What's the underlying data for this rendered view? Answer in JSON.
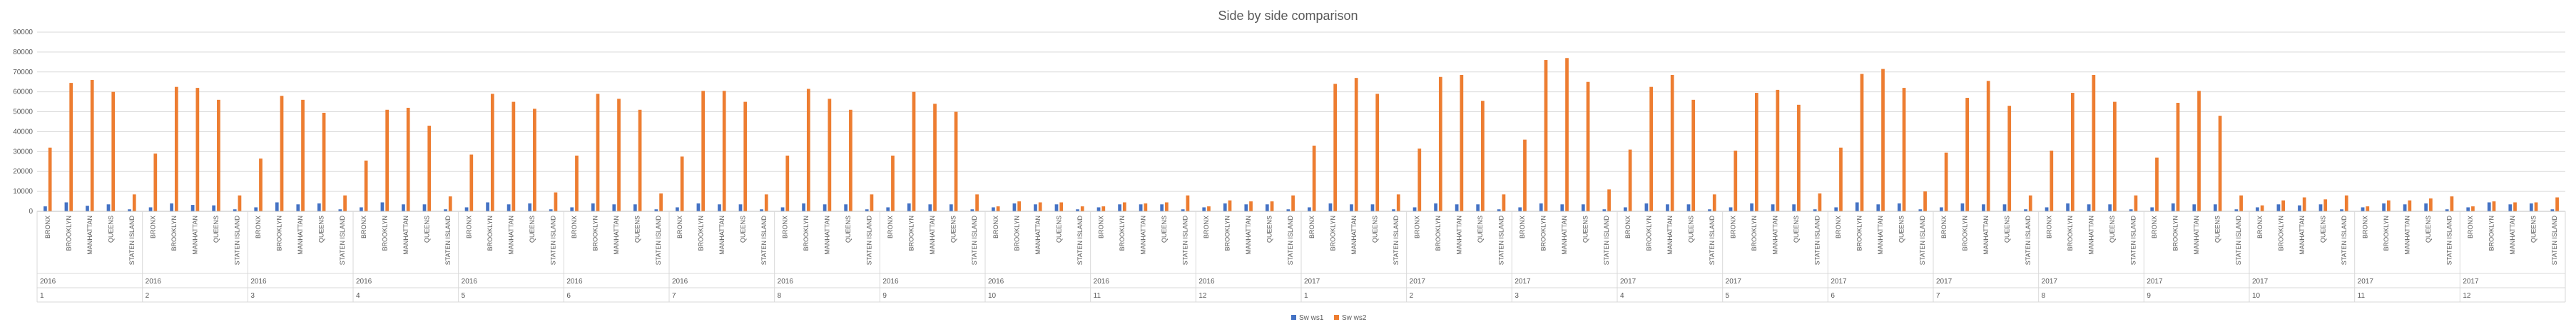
{
  "chart_data": {
    "type": "bar",
    "title": "Side by side comparison",
    "ylim": [
      0,
      90000
    ],
    "y_ticks": [
      0,
      10000,
      20000,
      30000,
      40000,
      50000,
      60000,
      70000,
      80000,
      90000
    ],
    "grid": true,
    "legend_position": "bottom-right",
    "boroughs": [
      "BRONX",
      "BROOKLYN",
      "MANHATTAN",
      "QUEENS",
      "STATEN ISLAND"
    ],
    "groups": [
      {
        "year": "2016",
        "month": "1"
      },
      {
        "year": "2016",
        "month": "2"
      },
      {
        "year": "2016",
        "month": "3"
      },
      {
        "year": "2016",
        "month": "4"
      },
      {
        "year": "2016",
        "month": "5"
      },
      {
        "year": "2016",
        "month": "6"
      },
      {
        "year": "2016",
        "month": "7"
      },
      {
        "year": "2016",
        "month": "8"
      },
      {
        "year": "2016",
        "month": "9"
      },
      {
        "year": "2016",
        "month": "10"
      },
      {
        "year": "2016",
        "month": "11"
      },
      {
        "year": "2016",
        "month": "12"
      },
      {
        "year": "2017",
        "month": "1"
      },
      {
        "year": "2017",
        "month": "2"
      },
      {
        "year": "2017",
        "month": "3"
      },
      {
        "year": "2017",
        "month": "4"
      },
      {
        "year": "2017",
        "month": "5"
      },
      {
        "year": "2017",
        "month": "6"
      },
      {
        "year": "2017",
        "month": "7"
      },
      {
        "year": "2017",
        "month": "8"
      },
      {
        "year": "2017",
        "month": "9"
      },
      {
        "year": "2017",
        "month": "10"
      },
      {
        "year": "2017",
        "month": "11"
      },
      {
        "year": "2017",
        "month": "12"
      }
    ],
    "series": [
      {
        "name": "Sw ws1",
        "color": "#4472C4",
        "values": [
          2500,
          4500,
          2800,
          3500,
          1000,
          2000,
          4000,
          3200,
          3000,
          1000,
          2000,
          4500,
          3500,
          4000,
          1000,
          2000,
          4500,
          3500,
          3500,
          1000,
          2000,
          4500,
          3500,
          4000,
          1000,
          2000,
          4000,
          3500,
          3500,
          1000,
          2000,
          4000,
          3500,
          3500,
          1000,
          2000,
          4000,
          3500,
          3500,
          1000,
          2000,
          4000,
          3500,
          3500,
          1000,
          2000,
          4000,
          3500,
          3500,
          1000,
          2000,
          3500,
          3500,
          3500,
          1000,
          2000,
          4000,
          3500,
          3500,
          1000,
          2000,
          4000,
          3500,
          3500,
          1000,
          2000,
          4000,
          3500,
          3500,
          1000,
          2000,
          4000,
          3500,
          3500,
          1000,
          2000,
          4000,
          3500,
          3500,
          1000,
          2000,
          4000,
          3500,
          3500,
          1000,
          2000,
          4500,
          3500,
          4000,
          1000,
          2000,
          4000,
          3500,
          3500,
          1000,
          2000,
          4000,
          3500,
          3500,
          1000,
          2000,
          4000,
          3500,
          3500,
          1000,
          2000,
          3500,
          3000,
          3500,
          1000,
          2000,
          4000,
          3500,
          4000,
          1000,
          2000,
          4500,
          3500,
          4000,
          1000
        ]
      },
      {
        "name": "Sw ws2",
        "color": "#ED7D31",
        "values": [
          32000,
          64500,
          66000,
          60000,
          8500,
          29000,
          62500,
          62000,
          56000,
          8000,
          26500,
          58000,
          56000,
          49500,
          8000,
          25500,
          51000,
          52000,
          43000,
          7500,
          28500,
          59000,
          55000,
          51500,
          9500,
          28000,
          59000,
          56500,
          51000,
          9000,
          27500,
          60500,
          60500,
          55000,
          8500,
          28000,
          61500,
          56500,
          51000,
          8500,
          28000,
          60000,
          54000,
          50000,
          8500,
          2500,
          5000,
          4500,
          4500,
          2500,
          2500,
          4500,
          4000,
          4500,
          8000,
          2500,
          5500,
          5000,
          5000,
          8000,
          33000,
          64000,
          67000,
          59000,
          8500,
          31500,
          67500,
          68500,
          55500,
          8500,
          36000,
          76000,
          77000,
          65000,
          11000,
          31000,
          62500,
          68500,
          56000,
          8500,
          30500,
          59500,
          61000,
          53500,
          9000,
          32000,
          69000,
          71500,
          62000,
          10000,
          29500,
          57000,
          65500,
          53000,
          8000,
          30500,
          59500,
          68500,
          55000,
          8000,
          27000,
          54500,
          60500,
          48000,
          8000,
          3000,
          5500,
          7000,
          6000,
          8000,
          2500,
          5500,
          5500,
          6500,
          7500,
          2500,
          5000,
          4500,
          4500,
          7000
        ]
      }
    ]
  }
}
